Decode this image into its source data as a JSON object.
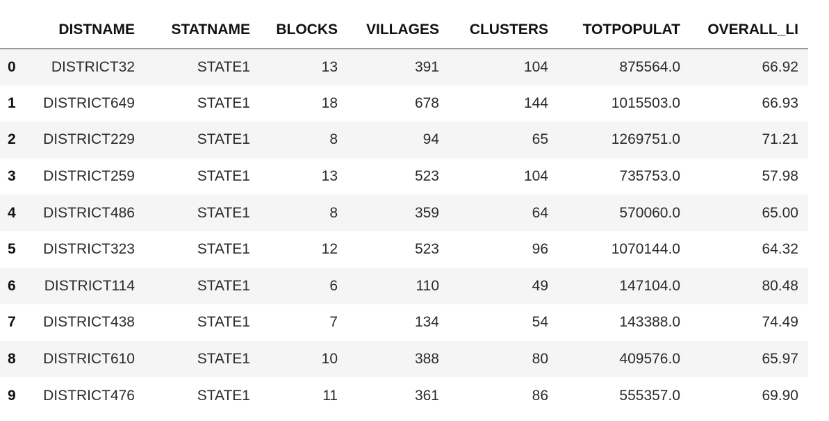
{
  "table": {
    "columns": [
      "",
      "DISTNAME",
      "STATNAME",
      "BLOCKS",
      "VILLAGES",
      "CLUSTERS",
      "TOTPOPULAT",
      "OVERALL_LI"
    ],
    "rows": [
      {
        "index": "0",
        "DISTNAME": "DISTRICT32",
        "STATNAME": "STATE1",
        "BLOCKS": "13",
        "VILLAGES": "391",
        "CLUSTERS": "104",
        "TOTPOPULAT": "875564.0",
        "OVERALL_LI": "66.92"
      },
      {
        "index": "1",
        "DISTNAME": "DISTRICT649",
        "STATNAME": "STATE1",
        "BLOCKS": "18",
        "VILLAGES": "678",
        "CLUSTERS": "144",
        "TOTPOPULAT": "1015503.0",
        "OVERALL_LI": "66.93"
      },
      {
        "index": "2",
        "DISTNAME": "DISTRICT229",
        "STATNAME": "STATE1",
        "BLOCKS": "8",
        "VILLAGES": "94",
        "CLUSTERS": "65",
        "TOTPOPULAT": "1269751.0",
        "OVERALL_LI": "71.21"
      },
      {
        "index": "3",
        "DISTNAME": "DISTRICT259",
        "STATNAME": "STATE1",
        "BLOCKS": "13",
        "VILLAGES": "523",
        "CLUSTERS": "104",
        "TOTPOPULAT": "735753.0",
        "OVERALL_LI": "57.98"
      },
      {
        "index": "4",
        "DISTNAME": "DISTRICT486",
        "STATNAME": "STATE1",
        "BLOCKS": "8",
        "VILLAGES": "359",
        "CLUSTERS": "64",
        "TOTPOPULAT": "570060.0",
        "OVERALL_LI": "65.00"
      },
      {
        "index": "5",
        "DISTNAME": "DISTRICT323",
        "STATNAME": "STATE1",
        "BLOCKS": "12",
        "VILLAGES": "523",
        "CLUSTERS": "96",
        "TOTPOPULAT": "1070144.0",
        "OVERALL_LI": "64.32"
      },
      {
        "index": "6",
        "DISTNAME": "DISTRICT114",
        "STATNAME": "STATE1",
        "BLOCKS": "6",
        "VILLAGES": "110",
        "CLUSTERS": "49",
        "TOTPOPULAT": "147104.0",
        "OVERALL_LI": "80.48"
      },
      {
        "index": "7",
        "DISTNAME": "DISTRICT438",
        "STATNAME": "STATE1",
        "BLOCKS": "7",
        "VILLAGES": "134",
        "CLUSTERS": "54",
        "TOTPOPULAT": "143388.0",
        "OVERALL_LI": "74.49"
      },
      {
        "index": "8",
        "DISTNAME": "DISTRICT610",
        "STATNAME": "STATE1",
        "BLOCKS": "10",
        "VILLAGES": "388",
        "CLUSTERS": "80",
        "TOTPOPULAT": "409576.0",
        "OVERALL_LI": "65.97"
      },
      {
        "index": "9",
        "DISTNAME": "DISTRICT476",
        "STATNAME": "STATE1",
        "BLOCKS": "11",
        "VILLAGES": "361",
        "CLUSTERS": "86",
        "TOTPOPULAT": "555357.0",
        "OVERALL_LI": "69.90"
      }
    ]
  },
  "colors": {
    "stripe": "#f5f5f5",
    "header_rule": "#9a9a9a",
    "text": "#2a2a2a"
  }
}
